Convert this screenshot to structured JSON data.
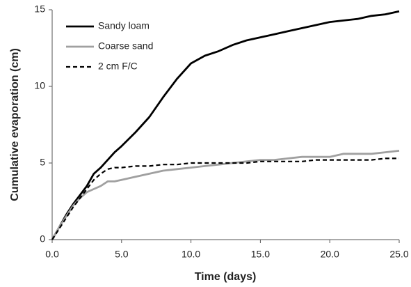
{
  "chart_data": {
    "type": "line",
    "xlabel": "Time (days)",
    "ylabel": "Cumulative evaporation (cm)",
    "x": [
      0,
      0.5,
      1,
      1.5,
      2,
      2.5,
      3,
      3.5,
      4,
      4.5,
      5,
      6,
      7,
      8,
      9,
      10,
      11,
      12,
      13,
      14,
      15,
      16,
      17,
      18,
      19,
      20,
      21,
      22,
      23,
      24,
      25
    ],
    "series": [
      {
        "name": "Sandy loam",
        "color": "#000000",
        "linestyle": "solid",
        "values": [
          0,
          0.8,
          1.6,
          2.3,
          2.9,
          3.5,
          4.3,
          4.7,
          5.2,
          5.7,
          6.1,
          7.0,
          8.0,
          9.3,
          10.5,
          11.5,
          12.0,
          12.3,
          12.7,
          13.0,
          13.2,
          13.4,
          13.6,
          13.8,
          14.0,
          14.2,
          14.3,
          14.4,
          14.6,
          14.7,
          14.9
        ]
      },
      {
        "name": "Coarse sand",
        "color": "#a0a0a0",
        "linestyle": "solid",
        "values": [
          0,
          0.8,
          1.5,
          2.2,
          2.7,
          3.1,
          3.3,
          3.5,
          3.8,
          3.8,
          3.9,
          4.1,
          4.3,
          4.5,
          4.6,
          4.7,
          4.8,
          4.9,
          5.0,
          5.1,
          5.2,
          5.2,
          5.3,
          5.4,
          5.4,
          5.4,
          5.6,
          5.6,
          5.6,
          5.7,
          5.8
        ]
      },
      {
        "name": "2 cm F/C",
        "color": "#000000",
        "linestyle": "dashed",
        "values": [
          0,
          0.7,
          1.4,
          2.1,
          2.7,
          3.3,
          3.9,
          4.3,
          4.6,
          4.7,
          4.7,
          4.8,
          4.8,
          4.9,
          4.9,
          5.0,
          5.0,
          5.0,
          5.0,
          5.0,
          5.1,
          5.1,
          5.1,
          5.1,
          5.2,
          5.2,
          5.2,
          5.2,
          5.2,
          5.3,
          5.3
        ]
      }
    ],
    "xlim": [
      0,
      25
    ],
    "xticks": [
      {
        "value": 0,
        "label": "0.0"
      },
      {
        "value": 5,
        "label": "5.0"
      },
      {
        "value": 10,
        "label": "10.0"
      },
      {
        "value": 15,
        "label": "15.0"
      },
      {
        "value": 20,
        "label": "20.0"
      },
      {
        "value": 25,
        "label": "25.0"
      }
    ],
    "ylim": [
      0,
      15
    ],
    "yticks": [
      0,
      5,
      10,
      15
    ],
    "grid": false,
    "legend": "top-left"
  }
}
